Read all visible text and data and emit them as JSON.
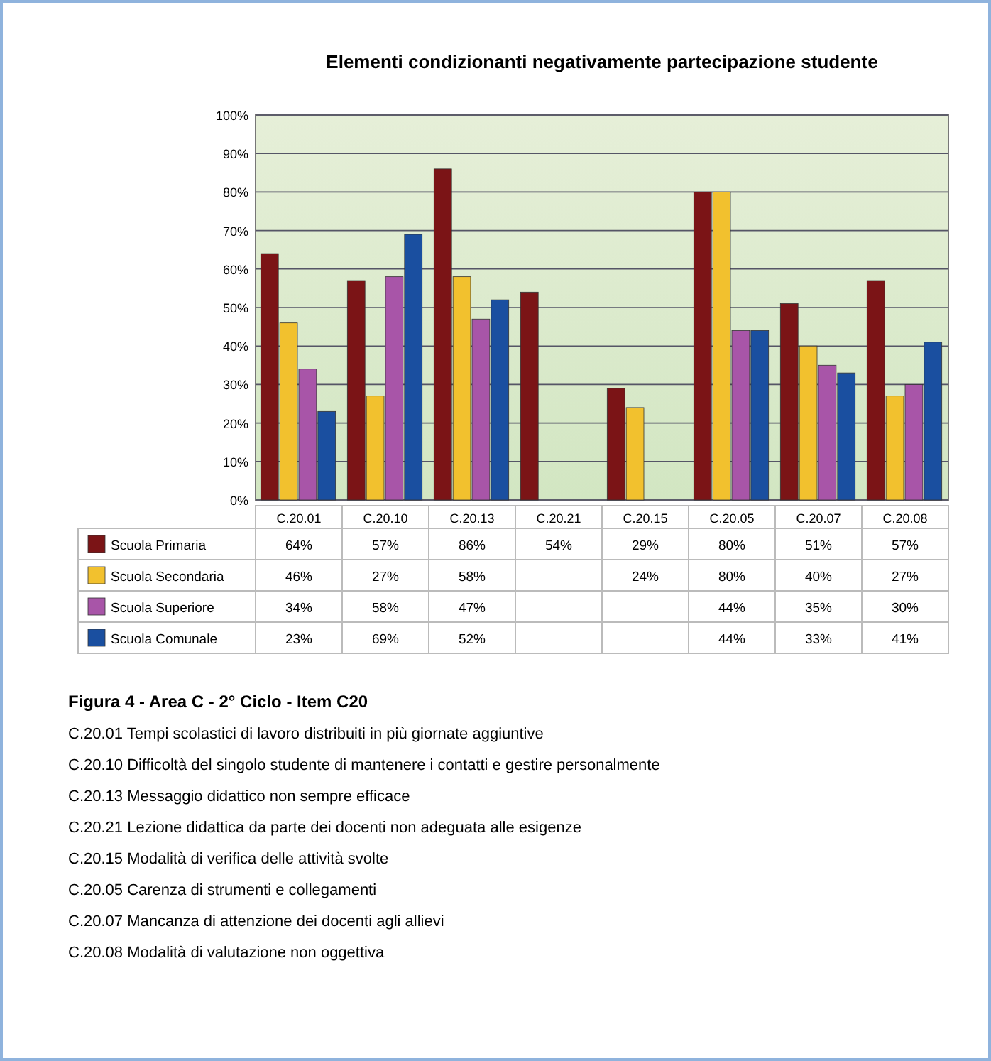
{
  "chart_data": {
    "type": "bar",
    "title": "Elementi condizionanti negativamente partecipazione studente",
    "categories": [
      "C.20.01",
      "C.20.10",
      "C.20.13",
      "C.20.21",
      "C.20.15",
      "C.20.05",
      "C.20.07",
      "C.20.08"
    ],
    "series": [
      {
        "name": "Scuola Primaria",
        "color": "#7b1416",
        "values": [
          64,
          57,
          86,
          54,
          29,
          80,
          51,
          57
        ],
        "value_labels": [
          "64%",
          "57%",
          "86%",
          "54%",
          "29%",
          "80%",
          "51%",
          "57%"
        ]
      },
      {
        "name": "Scuola Secondaria",
        "color": "#f2c12e",
        "values": [
          46,
          27,
          58,
          null,
          24,
          80,
          40,
          27
        ],
        "value_labels": [
          "46%",
          "27%",
          "58%",
          null,
          "24%",
          "80%",
          "40%",
          "27%"
        ]
      },
      {
        "name": "Scuola Superiore",
        "color": "#a855a8",
        "values": [
          34,
          58,
          47,
          null,
          null,
          44,
          35,
          30
        ],
        "value_labels": [
          "34%",
          "58%",
          "47%",
          null,
          null,
          "44%",
          "35%",
          "30%"
        ]
      },
      {
        "name": "Scuola Comunale",
        "color": "#1a4fa0",
        "values": [
          23,
          69,
          52,
          null,
          null,
          44,
          33,
          41
        ],
        "value_labels": [
          "23%",
          "69%",
          "52%",
          null,
          null,
          "44%",
          "33%",
          "41%"
        ]
      }
    ],
    "ylim": [
      0,
      100
    ],
    "yticks": [
      {
        "value": 0,
        "label": "0%"
      },
      {
        "value": 10,
        "label": "10%"
      },
      {
        "value": 20,
        "label": "20%"
      },
      {
        "value": 30,
        "label": "30%"
      },
      {
        "value": 40,
        "label": "40%"
      },
      {
        "value": 50,
        "label": "50%"
      },
      {
        "value": 60,
        "label": "60%"
      },
      {
        "value": 70,
        "label": "70%"
      },
      {
        "value": 80,
        "label": "80%"
      },
      {
        "value": 90,
        "label": "90%"
      },
      {
        "value": 100,
        "label": "100%"
      }
    ],
    "grid": "y",
    "legend": "bottom left",
    "annotations": [
      "Figura 4 - Area C - 2° Ciclo - Item C20",
      "C.20.01 Tempi scolastici di lavoro distribuiti in più giornate aggiuntive",
      "C.20.10 Difficoltà del singolo studente di mantenere i contatti e gestire personalmente",
      "C.20.13 Messaggio didattico non sempre efficace",
      "C.20.21 Lezione didattica da parte dei docenti non adeguata alle esigenze",
      "C.20.15 Modalità di verifica delle attività svolte",
      "C.20.05 Carenza di strumenti e collegamenti",
      "C.20.07 Mancanza di attenzione dei docenti agli allievi",
      "C.20.08 Modalità di valutazione non oggettiva"
    ]
  }
}
